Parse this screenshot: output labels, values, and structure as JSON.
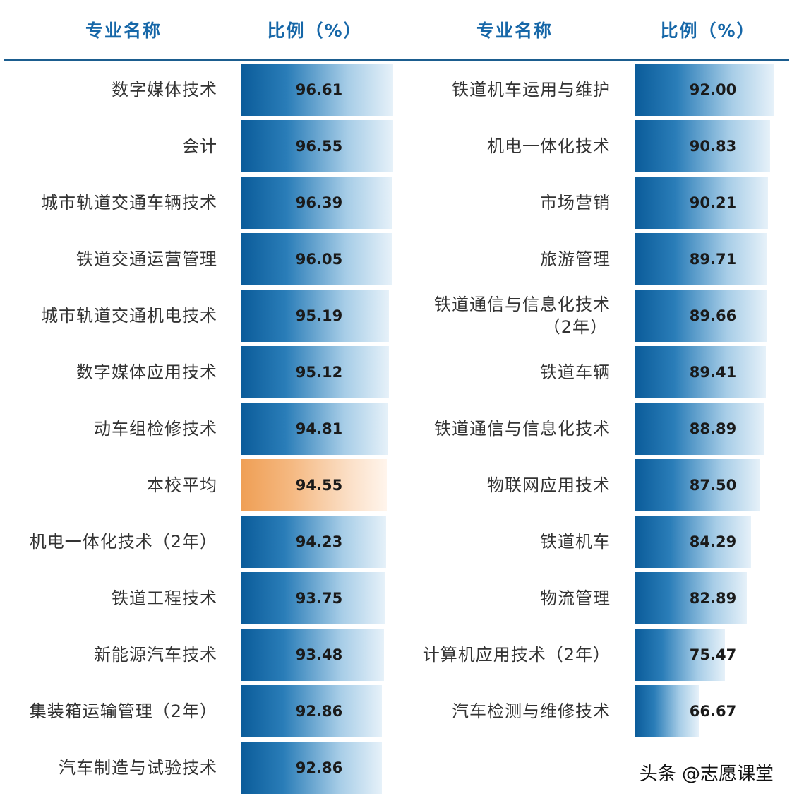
{
  "headers": {
    "left_name": "专业名称",
    "left_ratio": "比例（%）",
    "right_name": "专业名称",
    "right_ratio": "比例（%）"
  },
  "chart_data": {
    "type": "bar",
    "orientation": "horizontal",
    "columns": [
      {
        "categories": [
          "数字媒体技术",
          "会计",
          "城市轨道交通车辆技术",
          "铁道交通运营管理",
          "城市轨道交通机电技术",
          "数字媒体应用技术",
          "动车组检修技术",
          "本校平均",
          "机电一体化技术（2年）",
          "铁道工程技术",
          "新能源汽车技术",
          "集装箱运输管理（2年）",
          "汽车制造与试验技术"
        ],
        "values": [
          "96.61",
          "96.55",
          "96.39",
          "96.05",
          "95.19",
          "95.12",
          "94.81",
          "94.55",
          "94.23",
          "93.75",
          "93.48",
          "92.86",
          "92.86"
        ],
        "highlight_index": 7
      },
      {
        "categories": [
          "铁道机车运用与维护",
          "机电一体化技术",
          "市场营销",
          "旅游管理",
          "铁道通信与信息化技术（2年）",
          "铁道车辆",
          "铁道通信与信息化技术",
          "物联网应用技术",
          "铁道机车",
          "物流管理",
          "计算机应用技术（2年）",
          "汽车检测与维修技术"
        ],
        "values": [
          "92.00",
          "90.83",
          "90.21",
          "89.71",
          "89.66",
          "89.41",
          "88.89",
          "87.50",
          "84.29",
          "82.89",
          "75.47",
          "66.67"
        ]
      }
    ],
    "colors": {
      "bar": "#0b5c9a",
      "highlight": "#ef9f55",
      "header": "#1667a8"
    }
  },
  "watermark": "头条 @志愿课堂"
}
